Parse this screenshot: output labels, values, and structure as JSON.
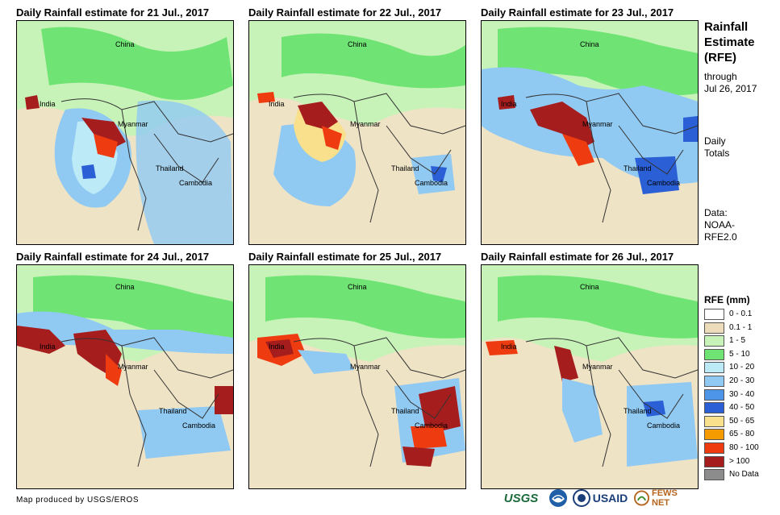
{
  "panels": [
    {
      "title": "Daily Rainfall estimate for 21 Jul., 2017"
    },
    {
      "title": "Daily Rainfall estimate for 22 Jul., 2017"
    },
    {
      "title": "Daily Rainfall estimate for 23 Jul., 2017"
    },
    {
      "title": "Daily Rainfall estimate for 24 Jul., 2017"
    },
    {
      "title": "Daily Rainfall estimate for 25 Jul., 2017"
    },
    {
      "title": "Daily Rainfall estimate for 26 Jul., 2017"
    }
  ],
  "map_labels": {
    "china": "China",
    "india": "India",
    "myanmar": "Myanmar",
    "thailand": "Thailand",
    "cambodia": "Cambodia"
  },
  "sidebar": {
    "title_line1": "Rainfall",
    "title_line2": "Estimate",
    "title_line3": "(RFE)",
    "through": "through",
    "date": "Jul 26, 2017",
    "daily": "Daily",
    "totals": "Totals",
    "data_label": "Data:",
    "data_src1": "NOAA-",
    "data_src2": "RFE2.0"
  },
  "legend": {
    "title": "RFE (mm)",
    "items": [
      {
        "label": "0 - 0.1",
        "color": "#ffffff"
      },
      {
        "label": "0.1 - 1",
        "color": "#ecdcba"
      },
      {
        "label": "1 - 5",
        "color": "#c7f3b8"
      },
      {
        "label": "5 - 10",
        "color": "#6fe373"
      },
      {
        "label": "10 - 20",
        "color": "#bdeaf7"
      },
      {
        "label": "20 - 30",
        "color": "#90c9f2"
      },
      {
        "label": "30 - 40",
        "color": "#4d95e8"
      },
      {
        "label": "40 - 50",
        "color": "#2a5fd6"
      },
      {
        "label": "50 - 65",
        "color": "#f8e08c"
      },
      {
        "label": "65 - 80",
        "color": "#f59b00"
      },
      {
        "label": "80 - 100",
        "color": "#ef3b10"
      },
      {
        "label": "> 100",
        "color": "#a51d1d"
      },
      {
        "label": "No Data",
        "color": "#8c8c8c"
      }
    ]
  },
  "credit": "Map produced by USGS/EROS",
  "logos": {
    "usgs": "USGS",
    "usaid": "USAID",
    "fewsnet": "FEWS NET"
  }
}
